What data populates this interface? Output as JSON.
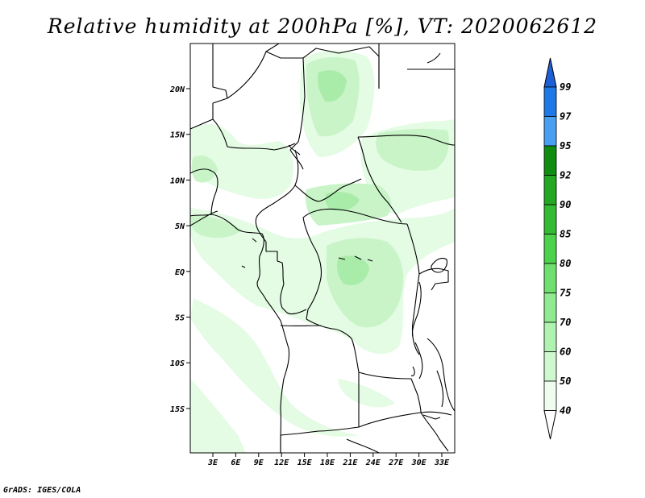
{
  "title": "Relative humidity at 200hPa [%], VT: 2020062612",
  "credit": "GrADS: IGES/COLA",
  "map": {
    "variable": "Relative humidity",
    "level": "200hPa",
    "units": "%",
    "valid_time": "2020062612",
    "lat_labels": [
      "20N",
      "15N",
      "10N",
      "5N",
      "EQ",
      "5S",
      "10S",
      "15S"
    ],
    "lon_labels": [
      "3E",
      "6E",
      "9E",
      "12E",
      "15E",
      "18E",
      "21E",
      "24E",
      "27E",
      "30E",
      "33E"
    ]
  },
  "colorbar": {
    "levels": [
      "99",
      "97",
      "95",
      "92",
      "90",
      "85",
      "80",
      "75",
      "70",
      "60",
      "50",
      "40"
    ],
    "colors": [
      "#1e5fd6",
      "#1e78e6",
      "#4aa0f0",
      "#108c10",
      "#22a822",
      "#33bb33",
      "#4dd24d",
      "#6fe06f",
      "#90ea90",
      "#b0f2b0",
      "#cff8cf",
      "#eefdee",
      "#ffffff"
    ]
  },
  "shading": {
    "light": "#e4fbe4",
    "mid": "#c8f4c8",
    "dark": "#a9eca9"
  }
}
